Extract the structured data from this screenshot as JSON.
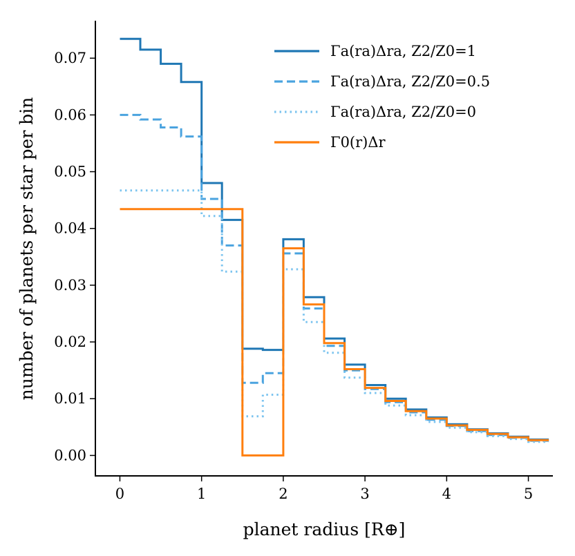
{
  "chart_data": {
    "type": "line",
    "step": true,
    "xlabel": "planet radius [R⊕]",
    "ylabel": "number of planets per star per bin",
    "xlim": [
      -0.3,
      5.3
    ],
    "ylim": [
      -0.0036,
      0.0766
    ],
    "x_ticks": [
      0,
      1,
      2,
      3,
      4,
      5
    ],
    "x_tick_labels": [
      "0",
      "1",
      "2",
      "3",
      "4",
      "5"
    ],
    "y_ticks": [
      0.0,
      0.01,
      0.02,
      0.03,
      0.04,
      0.05,
      0.06,
      0.07
    ],
    "y_tick_labels": [
      "0.00",
      "0.01",
      "0.02",
      "0.03",
      "0.04",
      "0.05",
      "0.06",
      "0.07"
    ],
    "grid": false,
    "legend_position": "top-right",
    "series": [
      {
        "name": "Γa(ra)Δra, Z2/Z0=1",
        "color": "#1f77b4",
        "style": "solid",
        "edges": [
          0,
          0.25,
          0.5,
          0.75,
          1.0,
          1.25,
          1.5,
          1.75,
          2.0,
          2.25,
          2.5,
          2.75,
          3.0,
          3.25,
          3.5,
          3.75,
          4.0,
          4.25,
          4.5,
          4.75,
          5.0,
          5.25
        ],
        "values": [
          0.0734,
          0.0715,
          0.069,
          0.0658,
          0.048,
          0.0415,
          0.0188,
          0.0186,
          0.0381,
          0.0279,
          0.0206,
          0.016,
          0.0124,
          0.01,
          0.0081,
          0.0067,
          0.0055,
          0.0046,
          0.0039,
          0.0033,
          0.0028
        ]
      },
      {
        "name": "Γa(ra)Δra, Z2/Z0=0.5",
        "color": "#4aa3df",
        "style": "dashed",
        "edges": [
          0,
          0.25,
          0.5,
          0.75,
          1.0,
          1.25,
          1.5,
          1.75,
          2.0,
          2.25,
          2.5,
          2.75,
          3.0,
          3.25,
          3.5,
          3.75,
          4.0,
          4.25,
          4.5,
          4.75,
          5.0,
          5.25
        ],
        "values": [
          0.06,
          0.0592,
          0.0578,
          0.0562,
          0.0452,
          0.037,
          0.0128,
          0.0145,
          0.0356,
          0.0259,
          0.0193,
          0.015,
          0.0117,
          0.0094,
          0.0076,
          0.0063,
          0.0052,
          0.0043,
          0.0036,
          0.0031,
          0.0026
        ]
      },
      {
        "name": "Γa(ra)Δra, Z2/Z0=0",
        "color": "#7cc4ef",
        "style": "dotted",
        "edges": [
          0,
          0.25,
          0.5,
          0.75,
          1.0,
          1.25,
          1.5,
          1.75,
          2.0,
          2.25,
          2.5,
          2.75,
          3.0,
          3.25,
          3.5,
          3.75,
          4.0,
          4.25,
          4.5,
          4.75,
          5.0,
          5.25
        ],
        "values": [
          0.0467,
          0.0467,
          0.0467,
          0.0467,
          0.0422,
          0.0324,
          0.0069,
          0.0107,
          0.0328,
          0.0235,
          0.0181,
          0.0137,
          0.011,
          0.0088,
          0.0071,
          0.0059,
          0.0049,
          0.0041,
          0.0034,
          0.0029,
          0.0024
        ]
      },
      {
        "name": "Γ0(r)Δr",
        "color": "#ff7f0e",
        "style": "solid",
        "edges": [
          0,
          0.25,
          0.5,
          0.75,
          1.0,
          1.25,
          1.5,
          1.75,
          2.0,
          2.25,
          2.5,
          2.75,
          3.0,
          3.25,
          3.5,
          3.75,
          4.0,
          4.25,
          4.5,
          4.75,
          5.0,
          5.25
        ],
        "values": [
          0.0434,
          0.0434,
          0.0434,
          0.0434,
          0.0434,
          0.0434,
          0.0,
          0.0,
          0.0365,
          0.0266,
          0.0198,
          0.0152,
          0.0119,
          0.0096,
          0.0078,
          0.0065,
          0.0053,
          0.0045,
          0.0038,
          0.0032,
          0.0027
        ]
      }
    ]
  }
}
